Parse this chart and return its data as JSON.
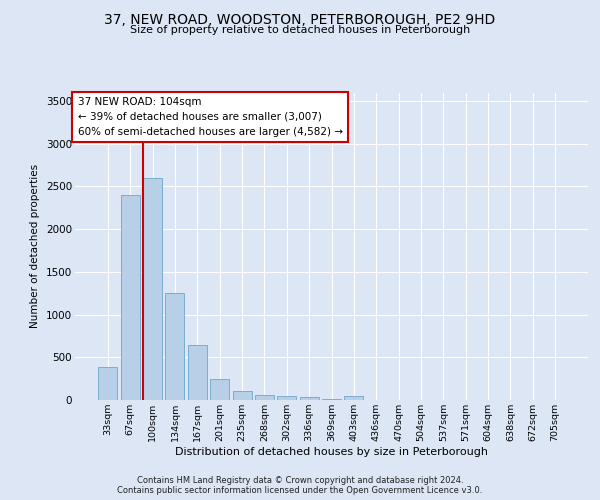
{
  "title_line1": "37, NEW ROAD, WOODSTON, PETERBOROUGH, PE2 9HD",
  "title_line2": "Size of property relative to detached houses in Peterborough",
  "xlabel": "Distribution of detached houses by size in Peterborough",
  "ylabel": "Number of detached properties",
  "categories": [
    "33sqm",
    "67sqm",
    "100sqm",
    "134sqm",
    "167sqm",
    "201sqm",
    "235sqm",
    "268sqm",
    "302sqm",
    "336sqm",
    "369sqm",
    "403sqm",
    "436sqm",
    "470sqm",
    "504sqm",
    "537sqm",
    "571sqm",
    "604sqm",
    "638sqm",
    "672sqm",
    "705sqm"
  ],
  "values": [
    390,
    2400,
    2600,
    1250,
    640,
    250,
    105,
    60,
    48,
    30,
    10,
    45,
    5,
    3,
    2,
    1,
    0,
    0,
    0,
    0,
    0
  ],
  "bar_color": "#b8cfe8",
  "bar_edge_color": "#7aadd4",
  "vline_color": "#cc0000",
  "vline_xindex": 2,
  "annotation_text": "37 NEW ROAD: 104sqm\n← 39% of detached houses are smaller (3,007)\n60% of semi-detached houses are larger (4,582) →",
  "annotation_box_facecolor": "#ffffff",
  "annotation_box_edgecolor": "#cc0000",
  "ylim": [
    0,
    3600
  ],
  "yticks": [
    0,
    500,
    1000,
    1500,
    2000,
    2500,
    3000,
    3500
  ],
  "background_color": "#dce6f5",
  "plot_background_color": "#dce6f5",
  "grid_color": "#ffffff",
  "footer_line1": "Contains HM Land Registry data © Crown copyright and database right 2024.",
  "footer_line2": "Contains public sector information licensed under the Open Government Licence v3.0."
}
